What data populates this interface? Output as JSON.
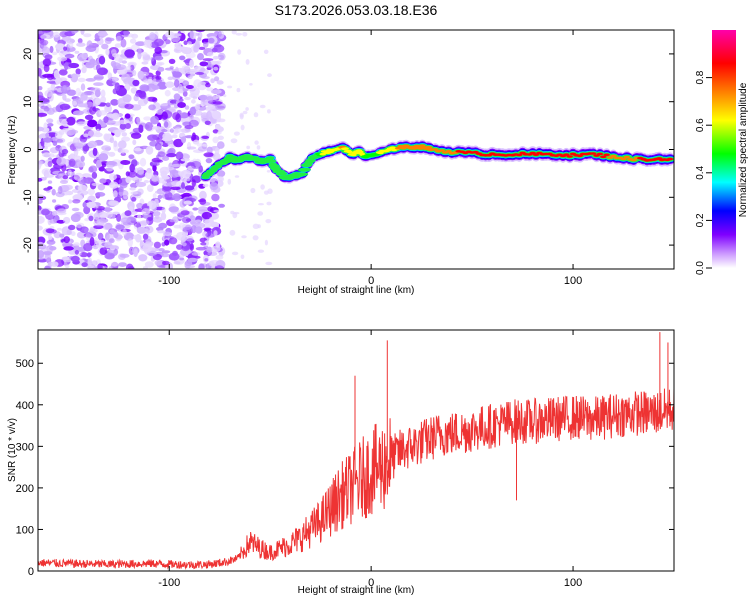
{
  "title": "S173.2026.053.03.18.E36",
  "chart_data": [
    {
      "type": "heatmap",
      "title": "S173.2026.053.03.18.E36",
      "xlabel": "Height of straight line (km)",
      "ylabel": "Frequency (Hz)",
      "xlim": [
        -165,
        150
      ],
      "ylim": [
        -25,
        25
      ],
      "x_ticks": [
        -100,
        0,
        100
      ],
      "y_ticks": [
        -20,
        -10,
        0,
        10,
        20
      ],
      "colorbar": {
        "label": "Normalized spectral amplitude",
        "range": [
          0,
          1
        ],
        "ticks": [
          0.0,
          0.2,
          0.4,
          0.6,
          0.8
        ],
        "colors": [
          "#ffffff",
          "#cc99ff",
          "#7f00ff",
          "#0000ff",
          "#00ffff",
          "#00ff00",
          "#ffff00",
          "#ff7f00",
          "#ff0000",
          "#ff00aa"
        ]
      },
      "ridge": {
        "x": [
          -82,
          -78,
          -74,
          -70,
          -66,
          -62,
          -58,
          -54,
          -50,
          -46,
          -42,
          -38,
          -34,
          -30,
          -26,
          -22,
          -18,
          -14,
          -10,
          -6,
          -2,
          2,
          6,
          10,
          14,
          18,
          22,
          26,
          30,
          40,
          50,
          60,
          70,
          80,
          90,
          100,
          110,
          120,
          130,
          140,
          148
        ],
        "freq": [
          -6,
          -4,
          -3,
          -1.5,
          -2.5,
          -1.5,
          -2,
          -2.5,
          -2,
          -4.5,
          -6,
          -5.5,
          -5,
          -2,
          -1,
          -0.5,
          0,
          0.5,
          -1,
          -0.5,
          -1.5,
          -1,
          -0.5,
          0,
          0.5,
          0.5,
          0.5,
          0.5,
          0,
          -0.5,
          -0.8,
          -1,
          -1,
          -1,
          -1,
          -1.2,
          -1,
          -1.5,
          -2,
          -2,
          -2
        ],
        "amplitude": [
          0.3,
          0.4,
          0.45,
          0.5,
          0.45,
          0.45,
          0.45,
          0.5,
          0.45,
          0.4,
          0.45,
          0.4,
          0.45,
          0.5,
          0.55,
          0.6,
          0.65,
          0.7,
          0.6,
          0.6,
          0.55,
          0.55,
          0.6,
          0.65,
          0.7,
          0.7,
          0.7,
          0.7,
          0.75,
          0.8,
          0.85,
          0.9,
          0.9,
          0.9,
          0.9,
          0.9,
          0.85,
          0.8,
          0.8,
          0.85,
          0.85
        ]
      },
      "noise_region_x": [
        -165,
        -80
      ]
    },
    {
      "type": "line",
      "xlabel": "Height of straight line (km)",
      "ylabel": "SNR (10 * v/v)",
      "xlim": [
        -165,
        150
      ],
      "ylim": [
        0,
        580
      ],
      "x_ticks": [
        -100,
        0,
        100
      ],
      "y_ticks": [
        0,
        100,
        200,
        300,
        400,
        500
      ],
      "color": "#ee3333",
      "series": [
        {
          "name": "SNR",
          "x": [
            -165,
            -150,
            -130,
            -110,
            -90,
            -80,
            -72,
            -66,
            -60,
            -55,
            -50,
            -45,
            -40,
            -35,
            -30,
            -25,
            -20,
            -15,
            -10,
            -5,
            0,
            5,
            10,
            15,
            20,
            25,
            30,
            35,
            40,
            50,
            60,
            70,
            80,
            90,
            100,
            110,
            120,
            130,
            140,
            150
          ],
          "values": [
            20,
            18,
            16,
            18,
            15,
            16,
            22,
            30,
            70,
            55,
            45,
            55,
            65,
            80,
            100,
            120,
            150,
            180,
            200,
            220,
            240,
            250,
            270,
            290,
            300,
            310,
            320,
            330,
            330,
            340,
            350,
            360,
            360,
            365,
            370,
            365,
            375,
            380,
            380,
            390
          ],
          "spikes": [
            {
              "x": 8,
              "y": 555
            },
            {
              "x": -8,
              "y": 470
            },
            {
              "x": 72,
              "y": 170
            },
            {
              "x": 143,
              "y": 575
            },
            {
              "x": 147,
              "y": 550
            }
          ]
        }
      ]
    }
  ]
}
